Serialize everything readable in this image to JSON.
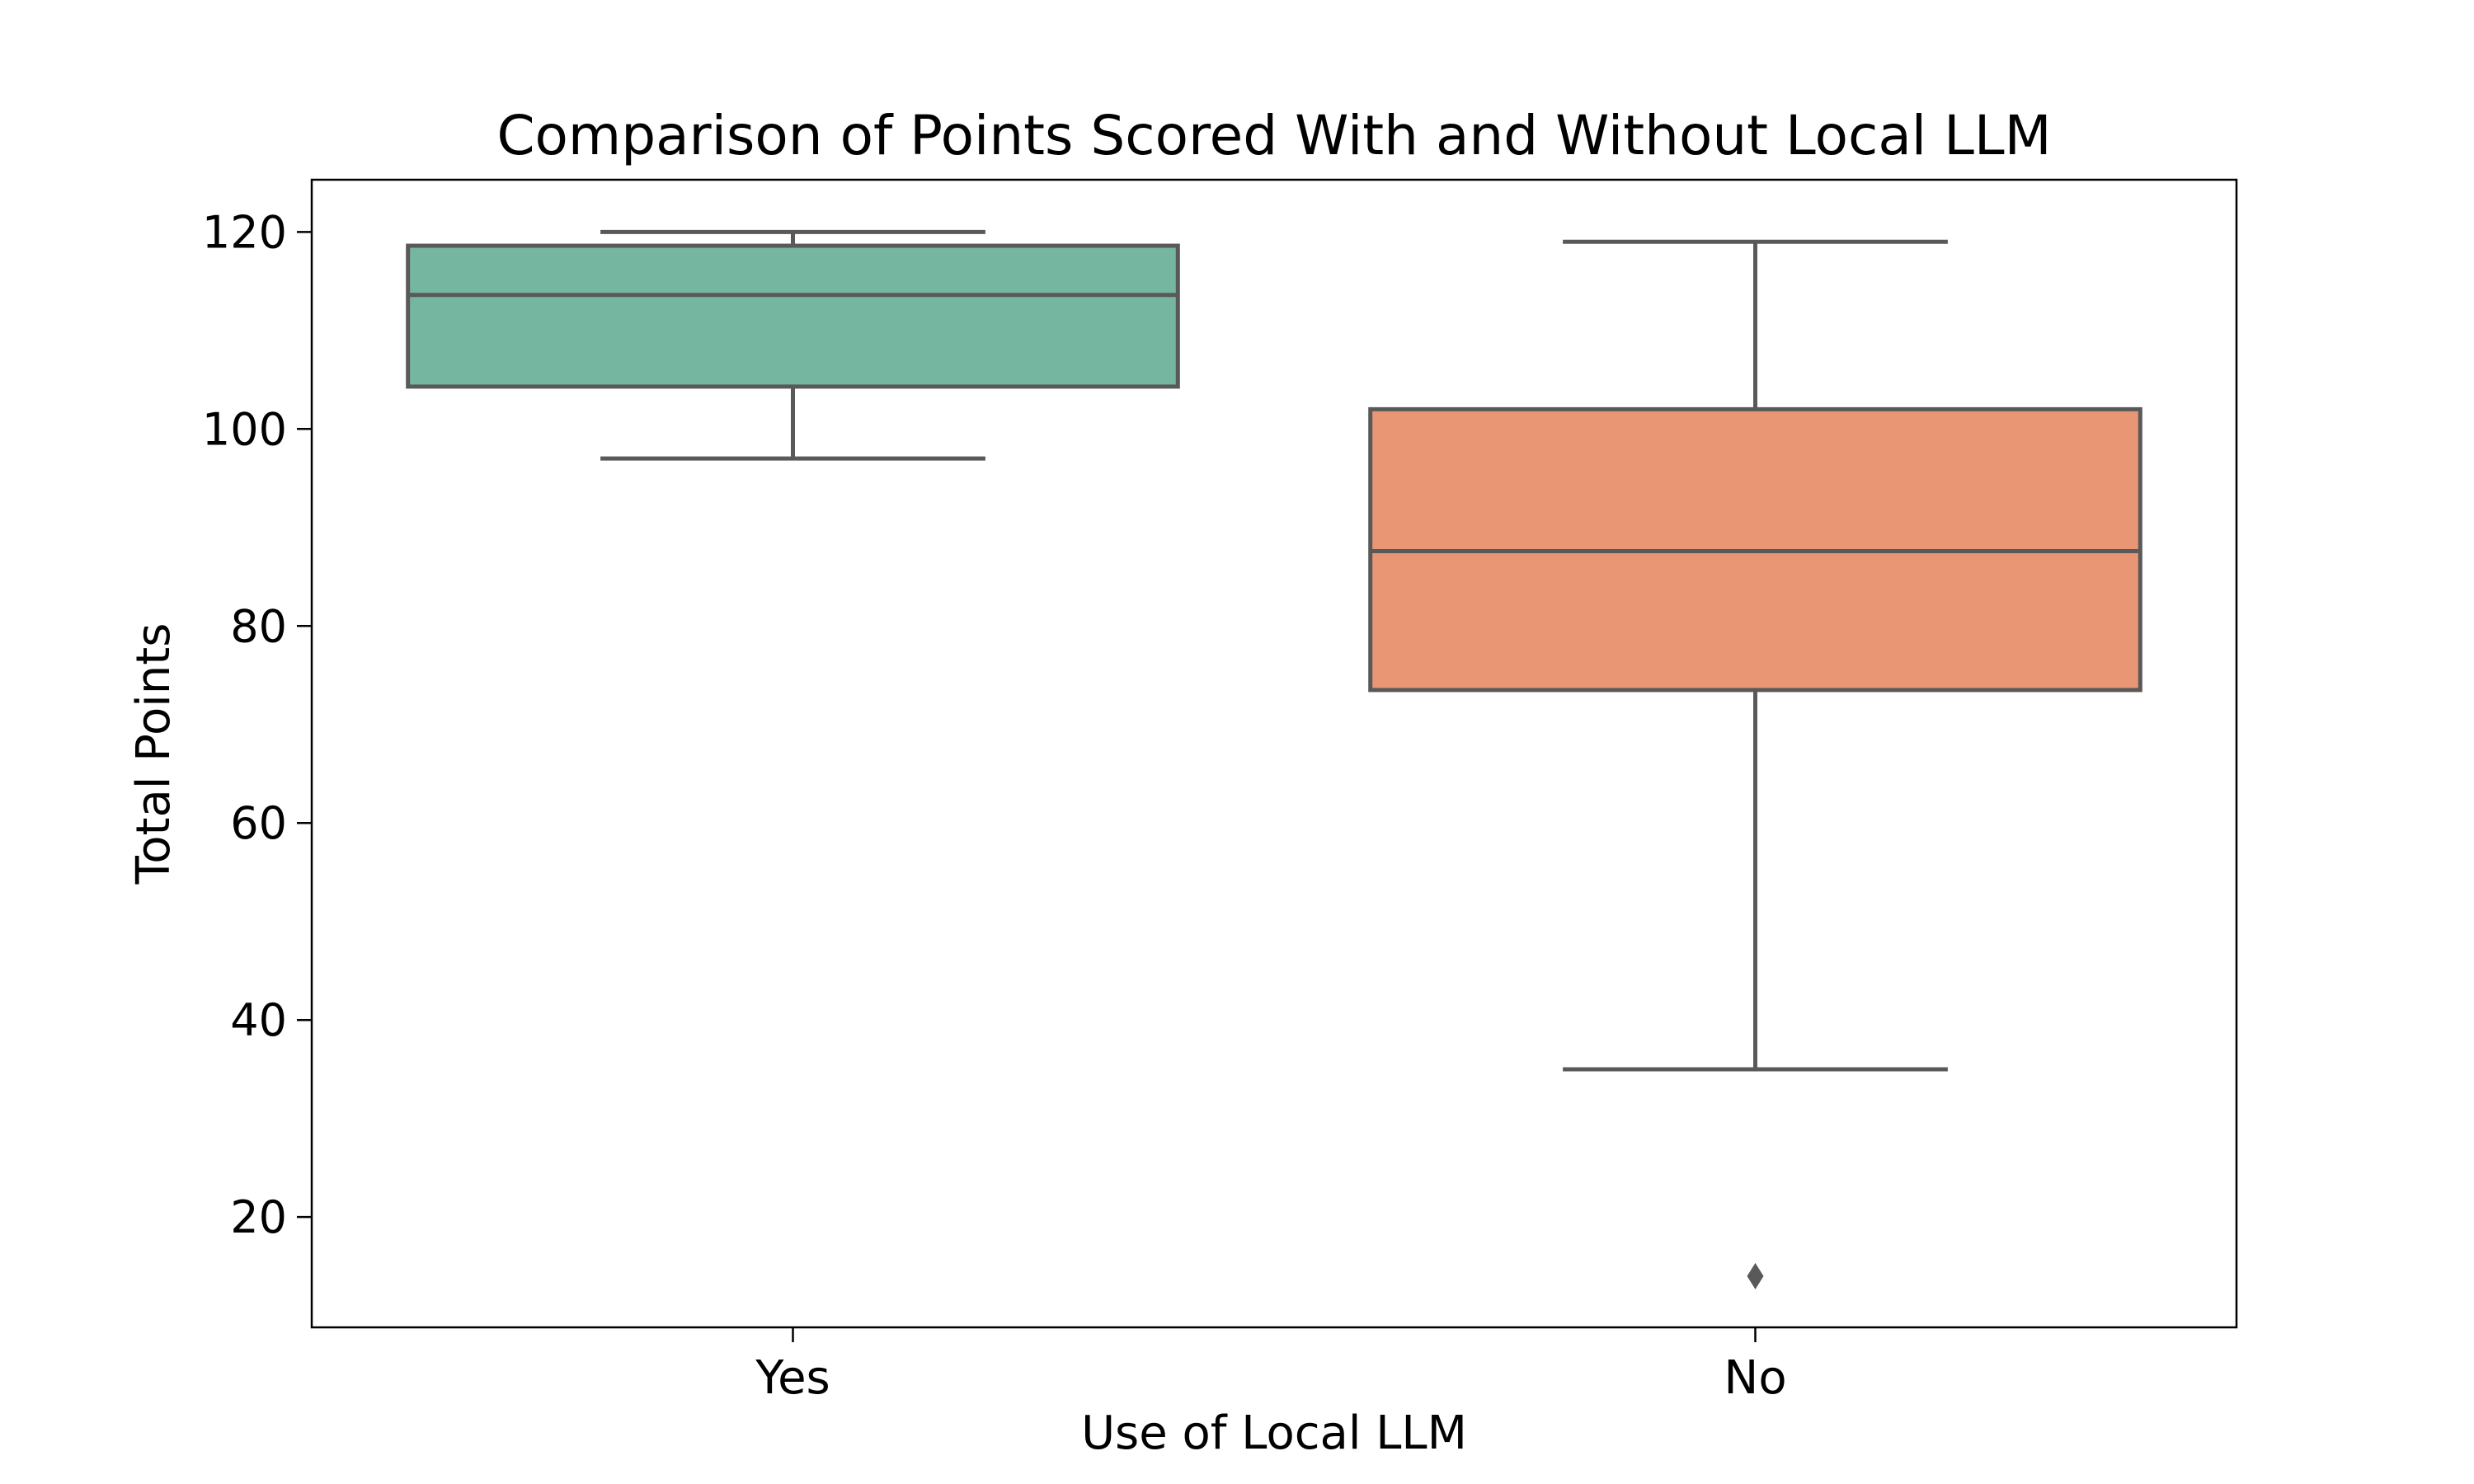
{
  "chart_data": {
    "type": "box",
    "title": "Comparison of Points Scored With and Without Local LLM",
    "xlabel": "Use of Local LLM",
    "ylabel": "Total Points",
    "categories": [
      "Yes",
      "No"
    ],
    "ylim": [
      8.8,
      125.3
    ],
    "yticks": [
      20,
      40,
      60,
      80,
      100,
      120
    ],
    "grid": false,
    "boxes": [
      {
        "category": "Yes",
        "whisker_low": 97,
        "q1": 104.3,
        "median": 113.6,
        "q3": 118.6,
        "whisker_high": 120,
        "outliers": [],
        "color": "#75b6a0"
      },
      {
        "category": "No",
        "whisker_low": 35,
        "q1": 73.5,
        "median": 87.6,
        "q3": 102,
        "whisker_high": 119,
        "outliers": [
          14
        ],
        "color": "#e89674"
      }
    ],
    "line_color": "#595959"
  }
}
